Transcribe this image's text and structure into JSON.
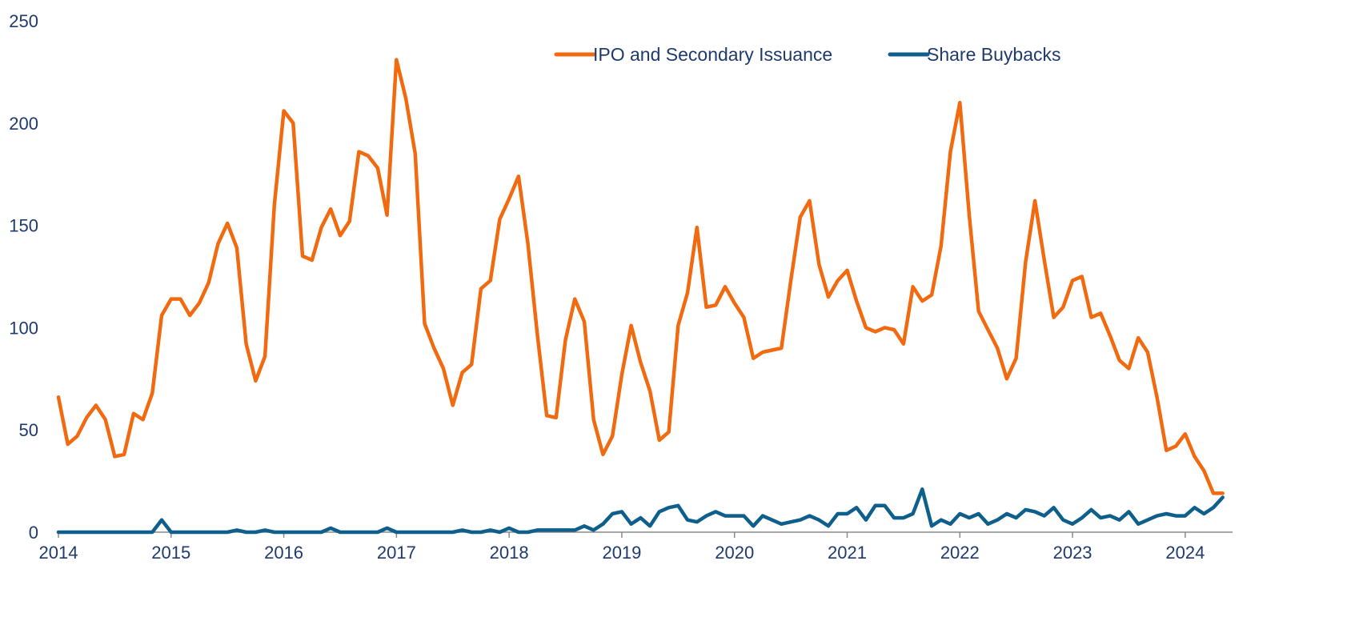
{
  "chart_data": {
    "type": "line",
    "title": "",
    "xlabel": "",
    "ylabel": "",
    "xlim": [
      2014,
      2024.42
    ],
    "ylim": [
      0,
      250
    ],
    "yticks": [
      0,
      50,
      100,
      150,
      200,
      250
    ],
    "xticks": [
      2014,
      2015,
      2016,
      2017,
      2018,
      2019,
      2020,
      2021,
      2022,
      2023,
      2024
    ],
    "grid": false,
    "legend_position": "top-right",
    "series": [
      {
        "name": "IPO and Secondary Issuance",
        "color": "#f26a10",
        "x_start": 2014,
        "x_step": 0.08333,
        "values": [
          66,
          43,
          47,
          56,
          62,
          55,
          37,
          38,
          58,
          55,
          68,
          106,
          114,
          114,
          106,
          112,
          122,
          141,
          151,
          139,
          92,
          74,
          86,
          160,
          206,
          200,
          135,
          133,
          149,
          158,
          145,
          152,
          186,
          184,
          178,
          155,
          231,
          212,
          185,
          102,
          90,
          80,
          62,
          78,
          82,
          119,
          123,
          153,
          163,
          174,
          141,
          97,
          57,
          56,
          94,
          114,
          103,
          55,
          38,
          47,
          77,
          101,
          83,
          69,
          45,
          49,
          101,
          117,
          149,
          110,
          111,
          120,
          112,
          105,
          85,
          88,
          89,
          90,
          123,
          154,
          162,
          131,
          115,
          123,
          128,
          113,
          100,
          98,
          100,
          99,
          92,
          120,
          113,
          116,
          140,
          186,
          210,
          155,
          108,
          99,
          90,
          75,
          85,
          132,
          162,
          133,
          105,
          110,
          123,
          125,
          105,
          107,
          96,
          84,
          80,
          95,
          88,
          66,
          40,
          42,
          48,
          37,
          30,
          19,
          19
        ]
      },
      {
        "name": "Share Buybacks",
        "color": "#0f5f8c",
        "x_start": 2014,
        "x_step": 0.08333,
        "values": [
          0,
          0,
          0,
          0,
          0,
          0,
          0,
          0,
          0,
          0,
          0,
          6,
          0,
          0,
          0,
          0,
          0,
          0,
          0,
          1,
          0,
          0,
          1,
          0,
          0,
          0,
          0,
          0,
          0,
          2,
          0,
          0,
          0,
          0,
          0,
          2,
          0,
          0,
          0,
          0,
          0,
          0,
          0,
          1,
          0,
          0,
          1,
          0,
          2,
          0,
          0,
          1,
          1,
          1,
          1,
          1,
          3,
          1,
          4,
          9,
          10,
          4,
          7,
          3,
          10,
          12,
          13,
          6,
          5,
          8,
          10,
          8,
          8,
          8,
          3,
          8,
          6,
          4,
          5,
          6,
          8,
          6,
          3,
          9,
          9,
          12,
          6,
          13,
          13,
          7,
          7,
          9,
          21,
          3,
          6,
          4,
          9,
          7,
          9,
          4,
          6,
          9,
          7,
          11,
          10,
          8,
          12,
          6,
          4,
          7,
          11,
          7,
          8,
          6,
          10,
          4,
          6,
          8,
          9,
          8,
          8,
          12,
          9,
          12,
          17
        ]
      }
    ]
  }
}
